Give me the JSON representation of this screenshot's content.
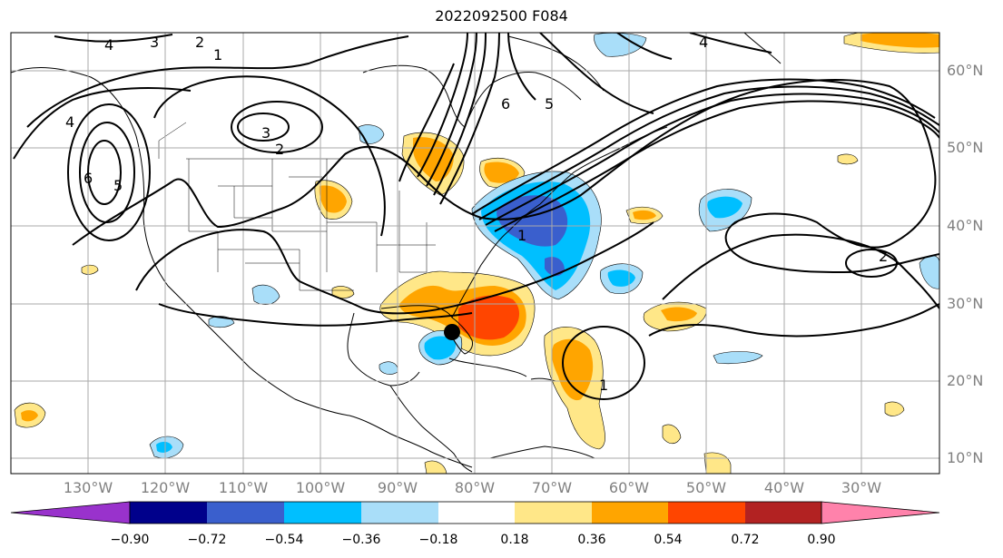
{
  "title": "2022092500 F084",
  "lat_labels": [
    "60°N",
    "50°N",
    "40°N",
    "30°N",
    "20°N",
    "10°N"
  ],
  "lon_labels": [
    "130°W",
    "120°W",
    "110°W",
    "100°W",
    "90°W",
    "80°W",
    "70°W",
    "60°W",
    "50°W",
    "40°W",
    "30°W"
  ],
  "contour_labels": [
    "4",
    "3",
    "2",
    "1",
    "3",
    "2",
    "4",
    "5",
    "6",
    "4",
    "5",
    "6",
    "1",
    "1",
    "2"
  ],
  "colorbar": {
    "ticks": [
      "−0.90",
      "−0.72",
      "−0.54",
      "−0.36",
      "−0.18",
      "0.18",
      "0.36",
      "0.54",
      "0.72",
      "0.90"
    ],
    "colors": [
      "#9932cc",
      "#00008b",
      "#3a5fcd",
      "#00bfff",
      "#a9def9",
      "#ffffff",
      "#ffe788",
      "#ffa500",
      "#ff4500",
      "#b22222",
      "#ff82ab"
    ]
  },
  "colors": {
    "lt_blue": "#a9def9",
    "blue": "#00bfff",
    "royal": "#3a5fcd",
    "yellow": "#ffe788",
    "orange": "#ffa500",
    "red_orange": "#ff4500",
    "grid": "#aaaaaa",
    "label_grey": "#808080"
  }
}
